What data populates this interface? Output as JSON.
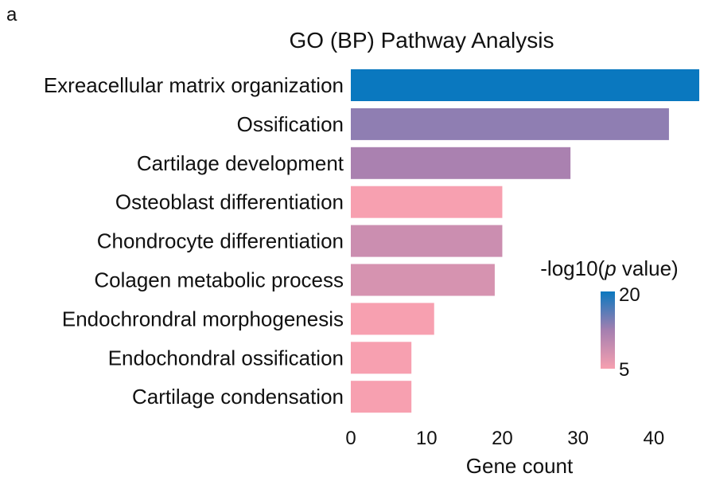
{
  "panel_label": "a",
  "chart_data": {
    "type": "bar",
    "orientation": "horizontal",
    "title": "GO (BP) Pathway Analysis",
    "xlabel": "Gene count",
    "ylabel": "",
    "xlim": [
      0,
      46
    ],
    "xticks": [
      0,
      10,
      20,
      30,
      40
    ],
    "grid": false,
    "categories": [
      "Exreacellular matrix organization",
      "Ossification",
      "Cartilage development",
      "Osteoblast differentiation",
      "Chondrocyte differentiation",
      "Colagen metabolic process",
      "Endochrondral morphogenesis",
      "Endochondral ossification",
      "Cartilage condensation"
    ],
    "values": [
      46,
      42,
      29,
      20,
      20,
      19,
      11,
      8,
      8
    ],
    "neg_log10_p": [
      22,
      13.5,
      12,
      4,
      9,
      8,
      4,
      4,
      5
    ],
    "colorbar": {
      "title_prefix": "-log10(",
      "title_italic": "p",
      "title_suffix": " value)",
      "min": 5,
      "max": 20,
      "tick_labels": [
        "20",
        "5"
      ],
      "low_color": "#f7a0b0",
      "mid_color": "#a47fb0",
      "high_color": "#0a78bf"
    }
  }
}
